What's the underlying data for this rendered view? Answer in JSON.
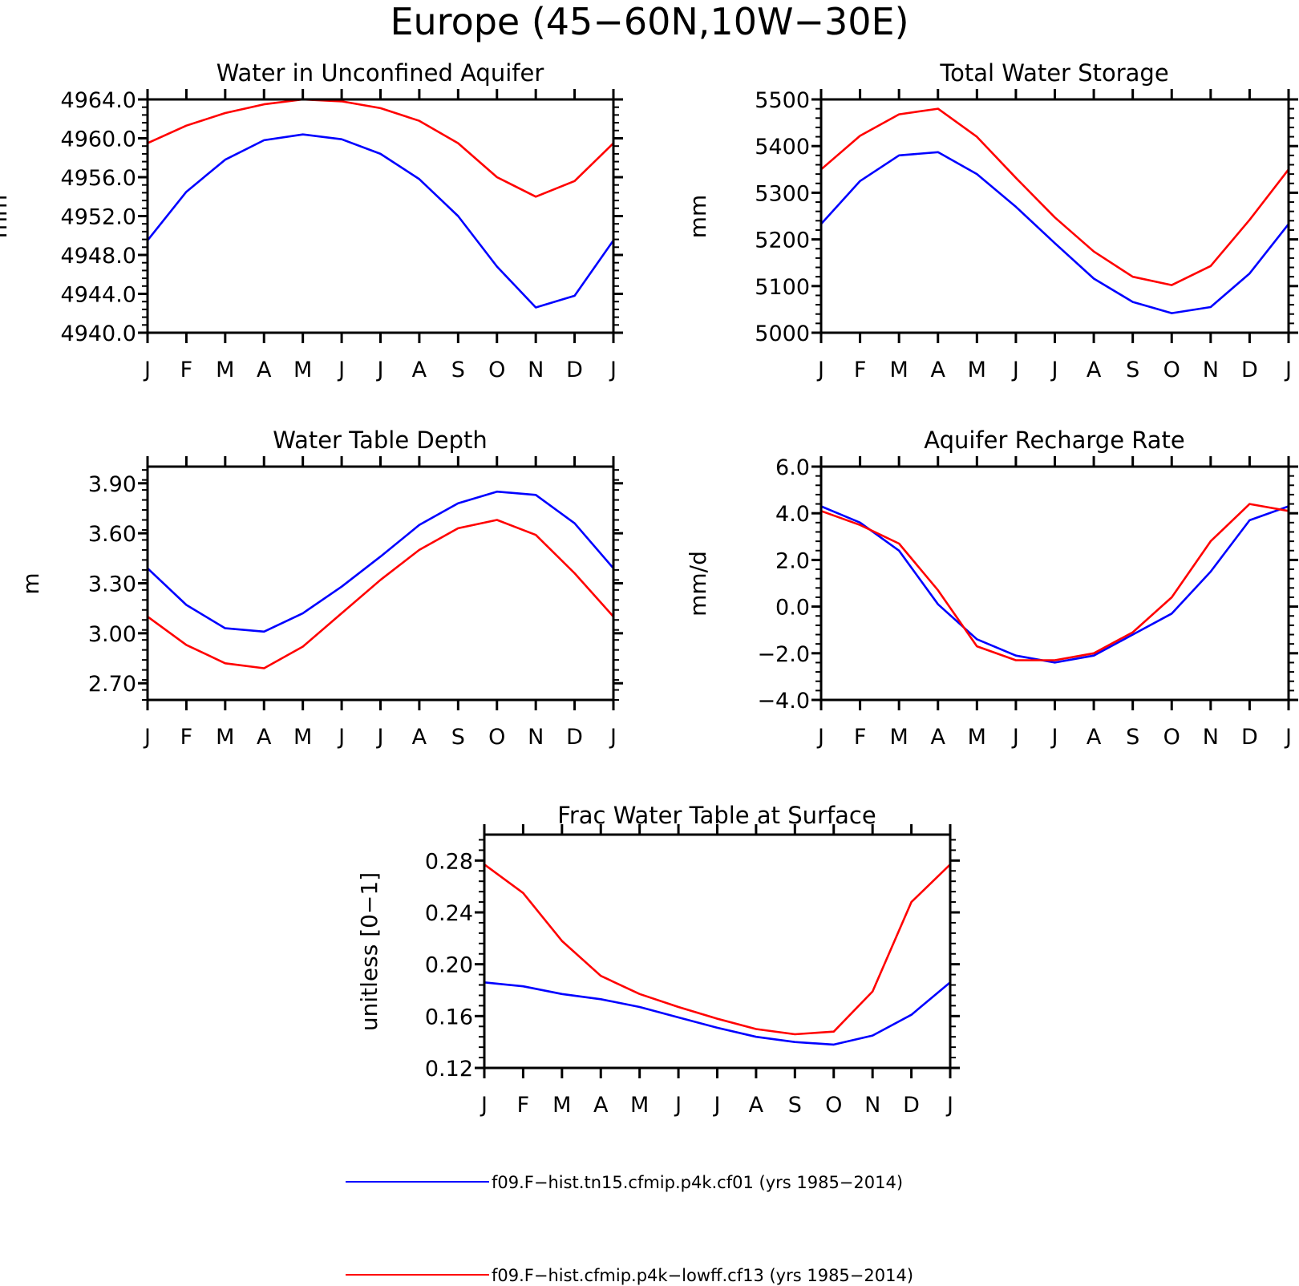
{
  "title": "Europe (45−60N,10W−30E)",
  "legend": [
    {
      "label": "f09.F−hist.tn15.cfmip.p4k.cf01 (yrs 1985−2014)",
      "color": "#0000ff"
    },
    {
      "label": "f09.F−hist.cfmip.p4k−lowff.cf13 (yrs 1985−2014)",
      "color": "#ff0000"
    }
  ],
  "chart_data": [
    {
      "type": "line",
      "title": "Water in Unconfined Aquifer",
      "ylabel": "mm",
      "categories": [
        "J",
        "F",
        "M",
        "A",
        "M",
        "J",
        "J",
        "A",
        "S",
        "O",
        "N",
        "D",
        "J"
      ],
      "ylim": [
        4940,
        4964
      ],
      "yticks": [
        4940,
        4944,
        4948,
        4952,
        4956,
        4960,
        4964
      ],
      "yticklabels": [
        "4940.0",
        "4944.0",
        "4948.0",
        "4952.0",
        "4956.0",
        "4960.0",
        "4964.0"
      ],
      "series": [
        {
          "color": "#0000ff",
          "values": [
            4949.5,
            4954.5,
            4957.8,
            4959.8,
            4960.4,
            4959.9,
            4958.4,
            4955.8,
            4952.0,
            4946.8,
            4942.6,
            4943.8,
            4949.5
          ]
        },
        {
          "color": "#ff0000",
          "values": [
            4959.5,
            4961.3,
            4962.6,
            4963.5,
            4964.0,
            4963.8,
            4963.1,
            4961.8,
            4959.5,
            4956.0,
            4954.0,
            4955.6,
            4959.5
          ]
        }
      ]
    },
    {
      "type": "line",
      "title": "Total Water Storage",
      "ylabel": "mm",
      "categories": [
        "J",
        "F",
        "M",
        "A",
        "M",
        "J",
        "J",
        "A",
        "S",
        "O",
        "N",
        "D",
        "J"
      ],
      "ylim": [
        5000,
        5500
      ],
      "yticks": [
        5000,
        5100,
        5200,
        5300,
        5400,
        5500
      ],
      "yticklabels": [
        "5000",
        "5100",
        "5200",
        "5300",
        "5400",
        "5500"
      ],
      "series": [
        {
          "color": "#0000ff",
          "values": [
            5233,
            5325,
            5380,
            5387,
            5340,
            5270,
            5192,
            5116,
            5066,
            5042,
            5055,
            5127,
            5233
          ]
        },
        {
          "color": "#ff0000",
          "values": [
            5350,
            5422,
            5468,
            5480,
            5420,
            5332,
            5247,
            5174,
            5120,
            5102,
            5143,
            5242,
            5350
          ]
        }
      ]
    },
    {
      "type": "line",
      "title": "Water Table Depth",
      "ylabel": "m",
      "categories": [
        "J",
        "F",
        "M",
        "A",
        "M",
        "J",
        "J",
        "A",
        "S",
        "O",
        "N",
        "D",
        "J"
      ],
      "ylim": [
        2.6,
        4.0
      ],
      "yticks": [
        2.7,
        3.0,
        3.3,
        3.6,
        3.9
      ],
      "yticklabels": [
        "2.70",
        "3.00",
        "3.30",
        "3.60",
        "3.90"
      ],
      "series": [
        {
          "color": "#0000ff",
          "values": [
            3.39,
            3.17,
            3.03,
            3.01,
            3.12,
            3.28,
            3.46,
            3.65,
            3.78,
            3.85,
            3.83,
            3.66,
            3.39
          ]
        },
        {
          "color": "#ff0000",
          "values": [
            3.1,
            2.93,
            2.82,
            2.79,
            2.92,
            3.12,
            3.32,
            3.5,
            3.63,
            3.68,
            3.59,
            3.36,
            3.1
          ]
        }
      ]
    },
    {
      "type": "line",
      "title": "Aquifer Recharge Rate",
      "ylabel": "mm/d",
      "categories": [
        "J",
        "F",
        "M",
        "A",
        "M",
        "J",
        "J",
        "A",
        "S",
        "O",
        "N",
        "D",
        "J"
      ],
      "ylim": [
        -4.0,
        6.0
      ],
      "yticks": [
        -4,
        -2,
        0,
        2,
        4,
        6
      ],
      "yticklabels": [
        "−4.0",
        "−2.0",
        "0.0",
        "2.0",
        "4.0",
        "6.0"
      ],
      "series": [
        {
          "color": "#0000ff",
          "values": [
            4.3,
            3.6,
            2.4,
            0.1,
            -1.4,
            -2.1,
            -2.4,
            -2.1,
            -1.2,
            -0.3,
            1.5,
            3.7,
            4.3
          ]
        },
        {
          "color": "#ff0000",
          "values": [
            4.1,
            3.5,
            2.7,
            0.7,
            -1.7,
            -2.3,
            -2.3,
            -2.0,
            -1.1,
            0.4,
            2.8,
            4.4,
            4.1
          ]
        }
      ]
    },
    {
      "type": "line",
      "title": "Frac Water Table at Surface",
      "ylabel": "unitless [0−1]",
      "categories": [
        "J",
        "F",
        "M",
        "A",
        "M",
        "J",
        "J",
        "A",
        "S",
        "O",
        "N",
        "D",
        "J"
      ],
      "ylim": [
        0.12,
        0.3
      ],
      "yticks": [
        0.12,
        0.16,
        0.2,
        0.24,
        0.28
      ],
      "yticklabels": [
        "0.12",
        "0.16",
        "0.20",
        "0.24",
        "0.28"
      ],
      "series": [
        {
          "color": "#0000ff",
          "values": [
            0.186,
            0.183,
            0.177,
            0.173,
            0.167,
            0.159,
            0.151,
            0.144,
            0.14,
            0.138,
            0.145,
            0.161,
            0.186
          ]
        },
        {
          "color": "#ff0000",
          "values": [
            0.277,
            0.255,
            0.218,
            0.191,
            0.177,
            0.167,
            0.158,
            0.15,
            0.146,
            0.148,
            0.179,
            0.248,
            0.277
          ]
        }
      ]
    }
  ]
}
